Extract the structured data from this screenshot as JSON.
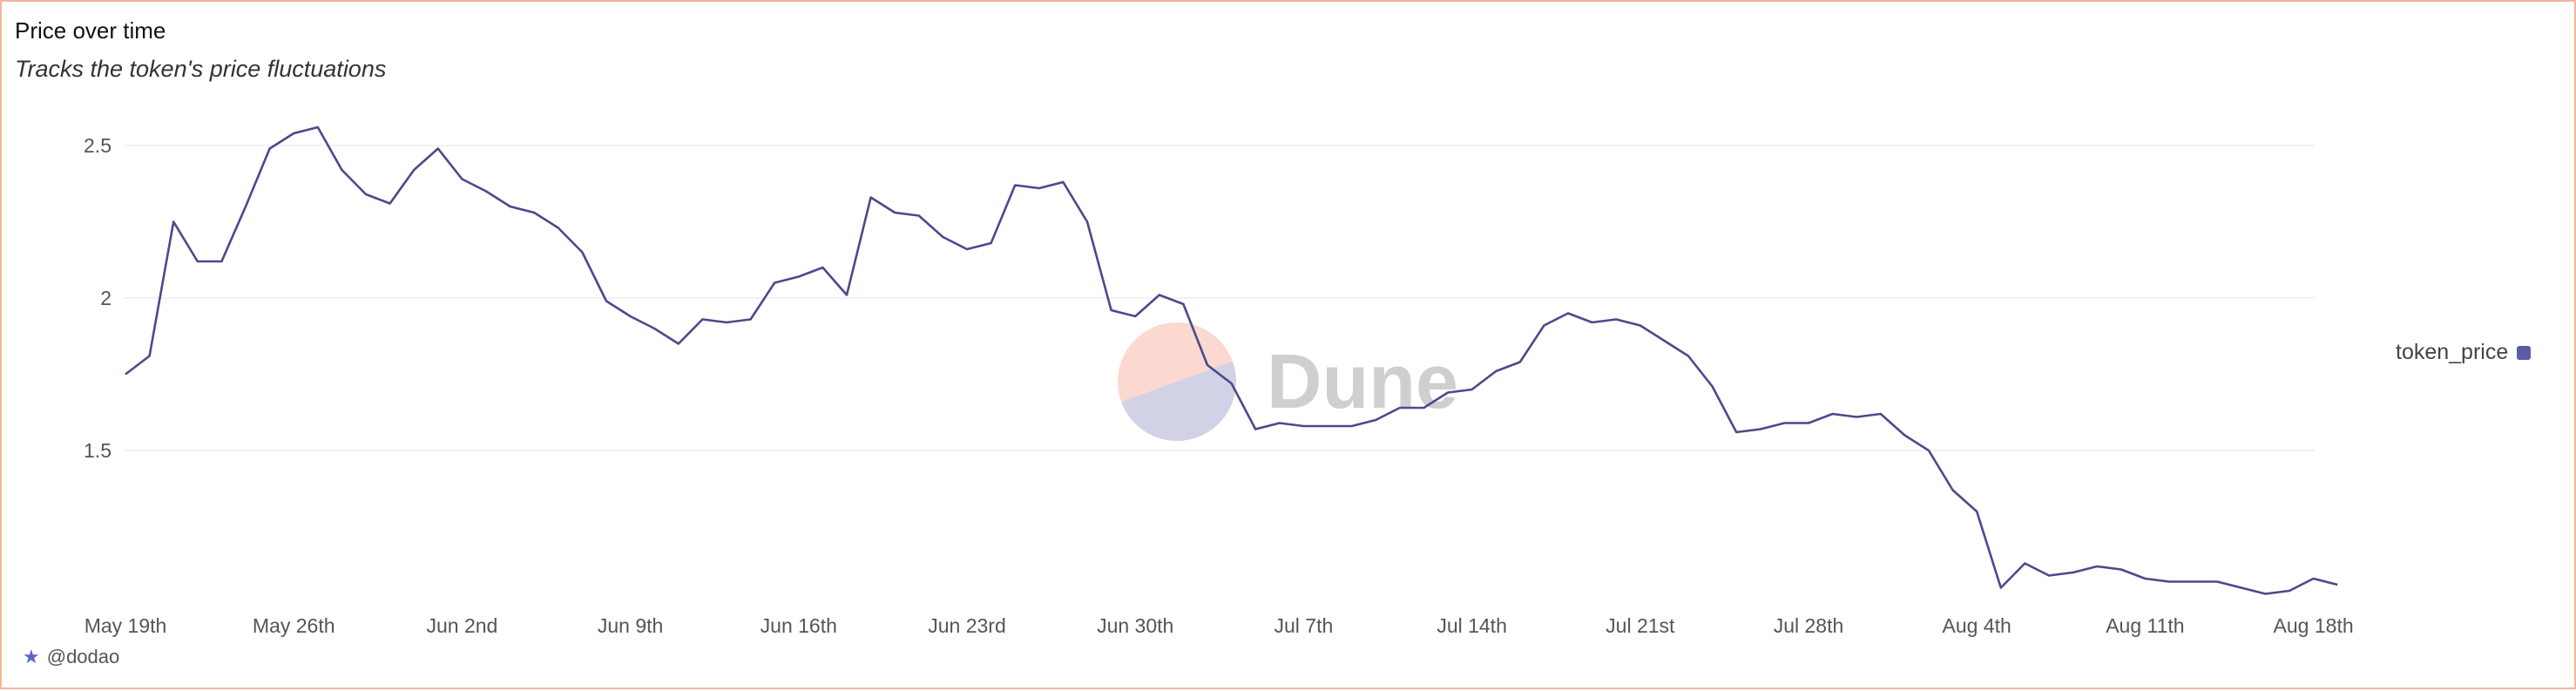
{
  "header": {
    "title": "Price over time",
    "subtitle": "Tracks the token's price fluctuations"
  },
  "legend": {
    "label": "token_price"
  },
  "footer": {
    "handle": "@dodao",
    "icon": "user-icon"
  },
  "watermark": {
    "text": "Dune"
  },
  "colors": {
    "line": "#4a4a8c",
    "grid": "#eeeeee",
    "border": "#f5b49a",
    "wm_orange": "#fbd9d0",
    "wm_blue": "#d2d2e6"
  },
  "chart_data": {
    "type": "line",
    "title": "Price over time",
    "xlabel": "",
    "ylabel": "",
    "x_tick_labels": [
      "May 19th",
      "May 26th",
      "Jun 2nd",
      "Jun 9th",
      "Jun 16th",
      "Jun 23rd",
      "Jun 30th",
      "Jul 7th",
      "Jul 14th",
      "Jul 21st",
      "Jul 28th",
      "Aug 4th",
      "Aug 11th",
      "Aug 18th"
    ],
    "y_ticks": [
      1.5,
      2,
      2.5
    ],
    "y_tick_labels": [
      "1.5",
      "2",
      "2.5"
    ],
    "ylim": [
      1.0,
      2.6
    ],
    "grid": true,
    "legend_position": "right",
    "x_start": "2024-05-19",
    "series": [
      {
        "name": "token_price",
        "values": [
          1.75,
          1.81,
          2.25,
          2.12,
          2.12,
          2.3,
          2.49,
          2.54,
          2.56,
          2.42,
          2.34,
          2.31,
          2.42,
          2.49,
          2.39,
          2.35,
          2.3,
          2.28,
          2.23,
          2.15,
          1.99,
          1.94,
          1.9,
          1.85,
          1.93,
          1.92,
          1.93,
          2.05,
          2.07,
          2.1,
          2.01,
          2.33,
          2.28,
          2.27,
          2.2,
          2.16,
          2.18,
          2.37,
          2.36,
          2.38,
          2.25,
          1.96,
          1.94,
          2.01,
          1.98,
          1.78,
          1.72,
          1.57,
          1.59,
          1.58,
          1.58,
          1.58,
          1.6,
          1.64,
          1.64,
          1.69,
          1.7,
          1.76,
          1.79,
          1.91,
          1.95,
          1.92,
          1.93,
          1.91,
          1.86,
          1.81,
          1.71,
          1.56,
          1.57,
          1.59,
          1.59,
          1.62,
          1.61,
          1.62,
          1.55,
          1.5,
          1.37,
          1.3,
          1.05,
          1.13,
          1.09,
          1.1,
          1.12,
          1.11,
          1.08,
          1.07,
          1.07,
          1.07,
          1.05,
          1.03,
          1.04,
          1.08,
          1.06
        ]
      }
    ]
  }
}
